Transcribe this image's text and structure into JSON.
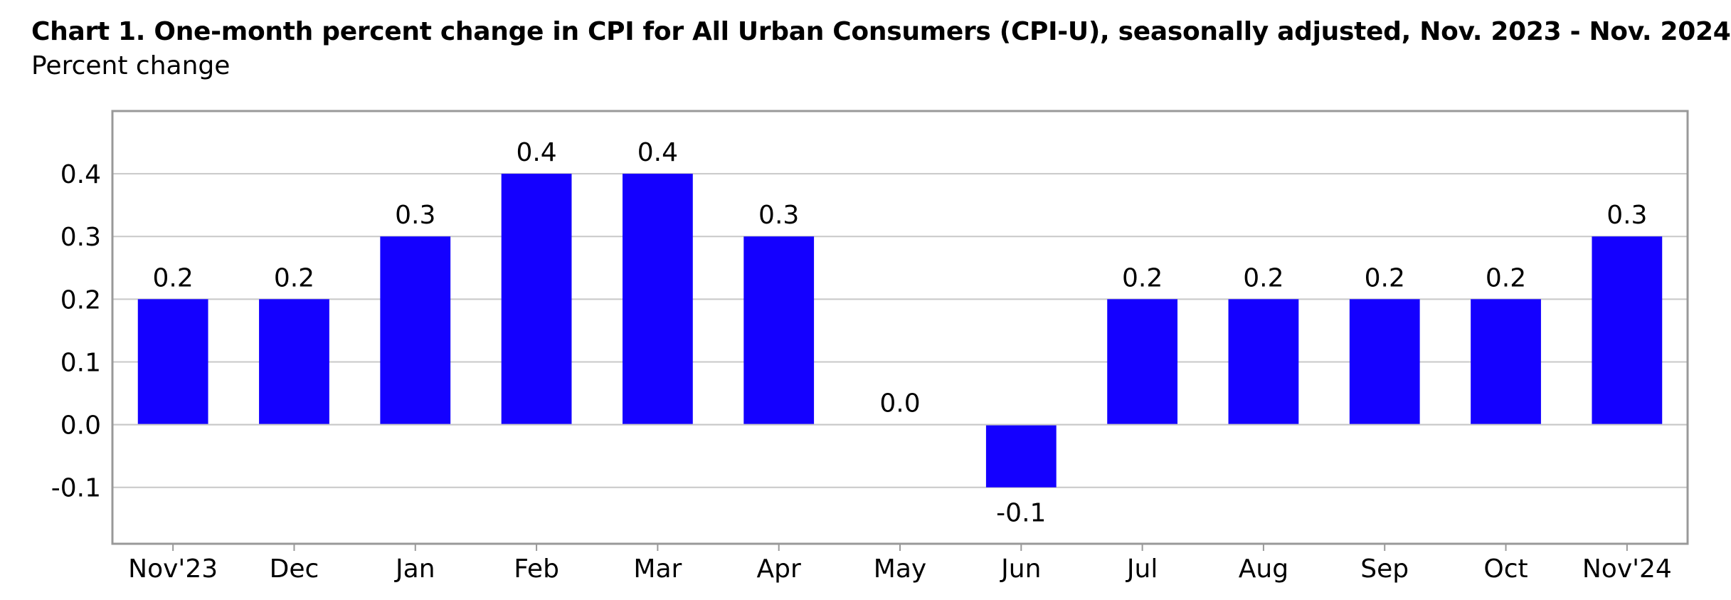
{
  "chart_data": {
    "type": "bar",
    "title": "Chart 1. One-month percent change in CPI for All Urban Consumers (CPI-U), seasonally adjusted, Nov. 2023 - Nov. 2024",
    "subtitle": "Percent change",
    "xlabel": "",
    "ylabel": "",
    "categories": [
      "Nov'23",
      "Dec",
      "Jan",
      "Feb",
      "Mar",
      "Apr",
      "May",
      "Jun",
      "Jul",
      "Aug",
      "Sep",
      "Oct",
      "Nov'24"
    ],
    "values": [
      0.2,
      0.2,
      0.3,
      0.4,
      0.4,
      0.3,
      0.0,
      -0.1,
      0.2,
      0.2,
      0.2,
      0.2,
      0.3
    ],
    "data_labels": [
      "0.2",
      "0.2",
      "0.3",
      "0.4",
      "0.4",
      "0.3",
      "0.0",
      "-0.1",
      "0.2",
      "0.2",
      "0.2",
      "0.2",
      "0.3"
    ],
    "yticks": [
      -0.1,
      0.0,
      0.1,
      0.2,
      0.3,
      0.4
    ],
    "ytick_labels": [
      "-0.1",
      "0.0",
      "0.1",
      "0.2",
      "0.3",
      "0.4"
    ],
    "ylim": [
      -0.19,
      0.5
    ],
    "grid": true,
    "legend": "none",
    "bar_color": "#1400ff",
    "grid_color": "#c8c8c8",
    "frame_color": "#999999"
  }
}
